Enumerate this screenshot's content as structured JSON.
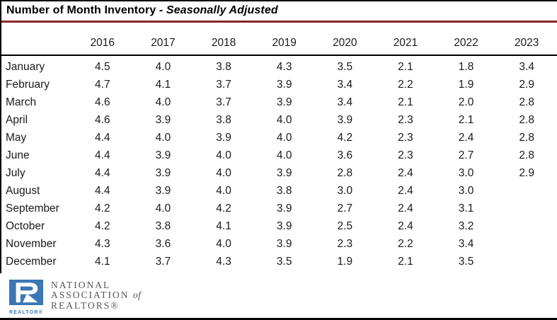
{
  "title": {
    "main": "Number of Month Inventory",
    "separator": " - ",
    "emphasis": "Seasonally Adjusted"
  },
  "table": {
    "years": [
      "2016",
      "2017",
      "2018",
      "2019",
      "2020",
      "2021",
      "2022",
      "2023"
    ],
    "rows": [
      {
        "month": "January",
        "values": [
          "4.5",
          "4.0",
          "3.8",
          "4.3",
          "3.5",
          "2.1",
          "1.8",
          "3.4"
        ]
      },
      {
        "month": "February",
        "values": [
          "4.7",
          "4.1",
          "3.7",
          "3.9",
          "3.4",
          "2.2",
          "1.9",
          "2.9"
        ]
      },
      {
        "month": "March",
        "values": [
          "4.6",
          "4.0",
          "3.7",
          "3.9",
          "3.4",
          "2.1",
          "2.0",
          "2.8"
        ]
      },
      {
        "month": "April",
        "values": [
          "4.6",
          "3.9",
          "3.8",
          "4.0",
          "3.9",
          "2.3",
          "2.1",
          "2.8"
        ]
      },
      {
        "month": "May",
        "values": [
          "4.4",
          "4.0",
          "3.9",
          "4.0",
          "4.2",
          "2.3",
          "2.4",
          "2.8"
        ]
      },
      {
        "month": "June",
        "values": [
          "4.4",
          "3.9",
          "4.0",
          "4.0",
          "3.6",
          "2.3",
          "2.7",
          "2.8"
        ]
      },
      {
        "month": "July",
        "values": [
          "4.4",
          "3.9",
          "4.0",
          "3.9",
          "2.8",
          "2.4",
          "3.0",
          "2.9"
        ]
      },
      {
        "month": "August",
        "values": [
          "4.4",
          "3.9",
          "4.0",
          "3.8",
          "3.0",
          "2.4",
          "3.0",
          ""
        ]
      },
      {
        "month": "September",
        "values": [
          "4.2",
          "4.0",
          "4.2",
          "3.9",
          "2.7",
          "2.4",
          "3.1",
          ""
        ]
      },
      {
        "month": "October",
        "values": [
          "4.2",
          "3.8",
          "4.1",
          "3.9",
          "2.5",
          "2.4",
          "3.2",
          ""
        ]
      },
      {
        "month": "November",
        "values": [
          "4.3",
          "3.6",
          "4.0",
          "3.9",
          "2.3",
          "2.2",
          "3.4",
          ""
        ]
      },
      {
        "month": "December",
        "values": [
          "4.1",
          "3.7",
          "4.3",
          "3.5",
          "1.9",
          "2.1",
          "3.5",
          ""
        ]
      }
    ]
  },
  "logo": {
    "realtor_label": "REALTOR®",
    "line1": "NATIONAL",
    "line2": "ASSOCIATION",
    "line2_of": "of",
    "line3": "REALTORS®"
  },
  "colors": {
    "title_rule": "#8B2626",
    "border": "#000000",
    "text": "#1A1A1A",
    "nar_blue": "#3B76B5",
    "nar_gray": "#54565B"
  },
  "chart_data": {
    "type": "table",
    "title": "Number of Month Inventory - Seasonally Adjusted",
    "row_labels": [
      "January",
      "February",
      "March",
      "April",
      "May",
      "June",
      "July",
      "August",
      "September",
      "October",
      "November",
      "December"
    ],
    "columns": [
      "2016",
      "2017",
      "2018",
      "2019",
      "2020",
      "2021",
      "2022",
      "2023"
    ],
    "series": [
      {
        "name": "2016",
        "values": [
          4.5,
          4.7,
          4.6,
          4.6,
          4.4,
          4.4,
          4.4,
          4.4,
          4.2,
          4.2,
          4.3,
          4.1
        ]
      },
      {
        "name": "2017",
        "values": [
          4.0,
          4.1,
          4.0,
          3.9,
          4.0,
          3.9,
          3.9,
          3.9,
          4.0,
          3.8,
          3.6,
          3.7
        ]
      },
      {
        "name": "2018",
        "values": [
          3.8,
          3.7,
          3.7,
          3.8,
          3.9,
          4.0,
          4.0,
          4.0,
          4.2,
          4.1,
          4.0,
          4.3
        ]
      },
      {
        "name": "2019",
        "values": [
          4.3,
          3.9,
          3.9,
          4.0,
          4.0,
          4.0,
          3.9,
          3.8,
          3.9,
          3.9,
          3.9,
          3.5
        ]
      },
      {
        "name": "2020",
        "values": [
          3.5,
          3.4,
          3.4,
          3.9,
          4.2,
          3.6,
          2.8,
          3.0,
          2.7,
          2.5,
          2.3,
          1.9
        ]
      },
      {
        "name": "2021",
        "values": [
          2.1,
          2.2,
          2.1,
          2.3,
          2.3,
          2.3,
          2.4,
          2.4,
          2.4,
          2.4,
          2.2,
          2.1
        ]
      },
      {
        "name": "2022",
        "values": [
          1.8,
          1.9,
          2.0,
          2.1,
          2.4,
          2.7,
          3.0,
          3.0,
          3.1,
          3.2,
          3.4,
          3.5
        ]
      },
      {
        "name": "2023",
        "values": [
          3.4,
          2.9,
          2.8,
          2.8,
          2.8,
          2.8,
          2.9,
          null,
          null,
          null,
          null,
          null
        ]
      }
    ]
  }
}
